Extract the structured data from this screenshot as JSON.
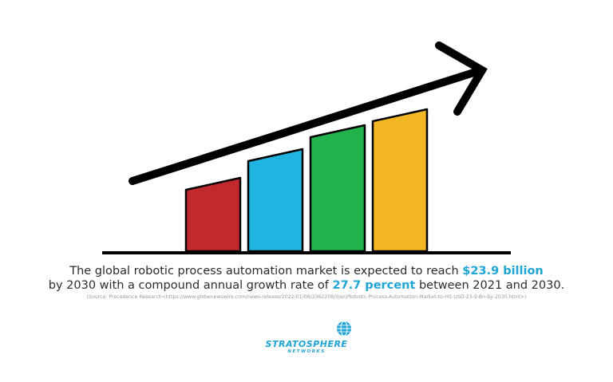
{
  "caption": {
    "line1_pre": "The global robotic process automation market is expected to reach ",
    "line1_highlight": "$23.9 billion",
    "line2_pre": "by 2030 with a compound annual growth rate of ",
    "line2_highlight": "27.7 percent",
    "line2_post": " between 2021 and 2030.",
    "source": "(Source: Precedence Research<https://www.globenewswire.com/news-release/2022/01/06/2362208/0/en/Robotic-Process-Automation-Market-to-Hit-USD-23-9-Bn-by-2030.html>)"
  },
  "logo": {
    "name": "STRATOSPHERE",
    "sub": "NETWORKS",
    "icon": "globe-icon"
  },
  "bars": [
    {
      "color": "#c0292e",
      "level": 0.46
    },
    {
      "color": "#1fb5e0",
      "level": 0.64
    },
    {
      "color": "#21b24b",
      "level": 0.79
    },
    {
      "color": "#f4b723",
      "level": 0.89
    }
  ],
  "colors": {
    "accent": "#1fa4d6",
    "text": "#2b2b2b",
    "ink": "#000000"
  }
}
